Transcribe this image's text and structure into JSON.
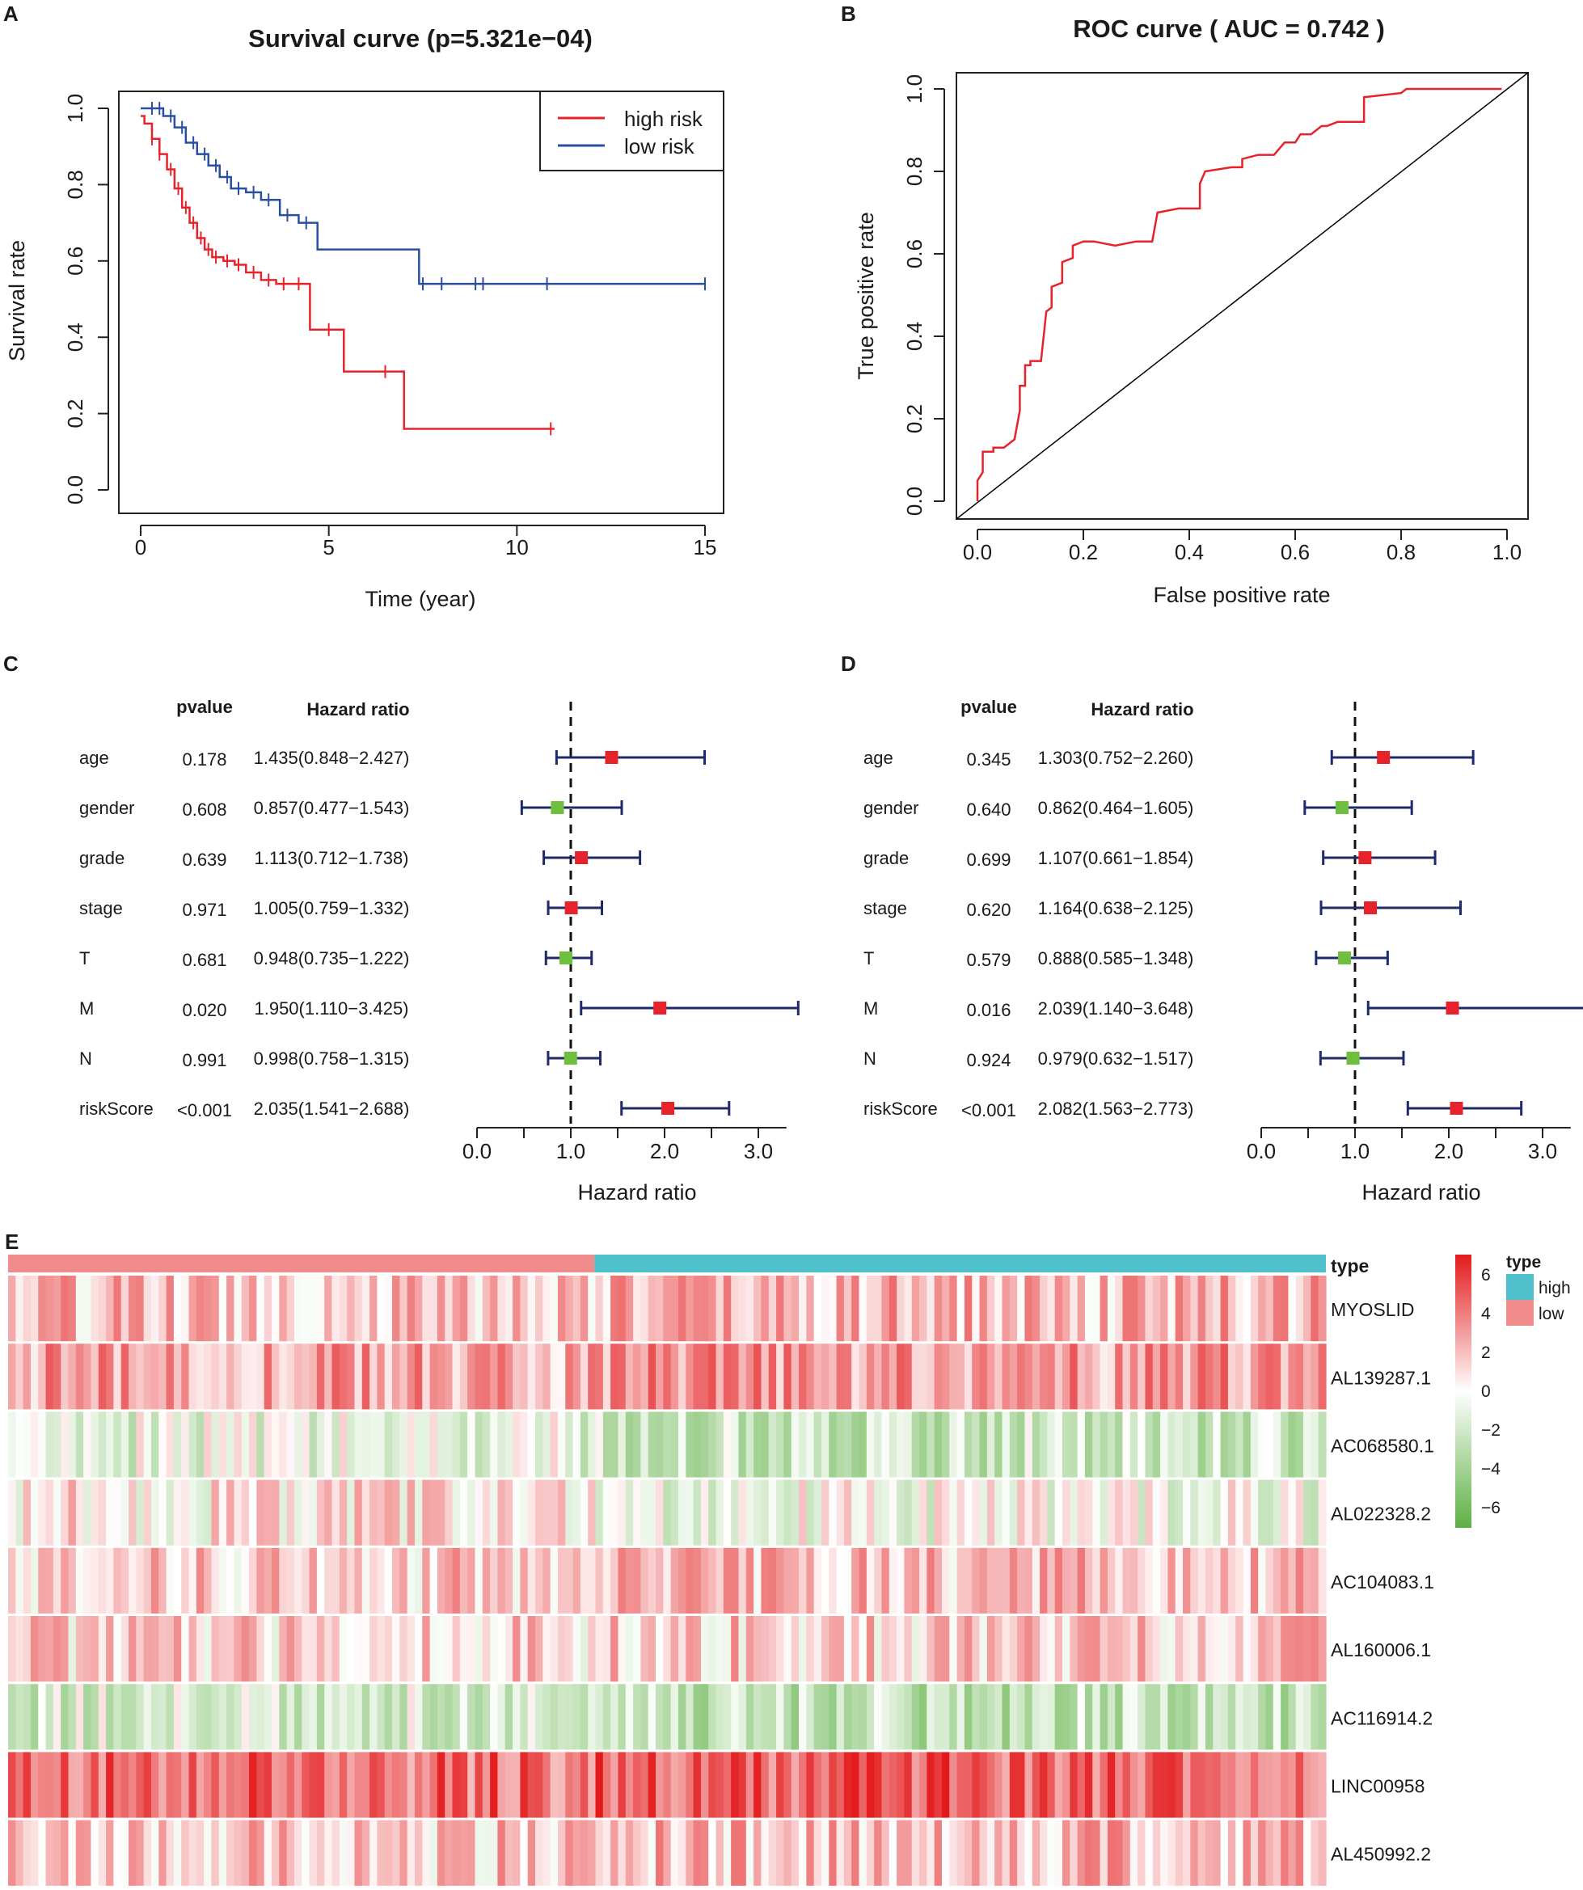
{
  "panels": {
    "A": "A",
    "B": "B",
    "C": "C",
    "D": "D",
    "E": "E"
  },
  "chart_data": [
    {
      "id": "A",
      "type": "line",
      "subtype": "kaplan-meier",
      "title": "Survival curve (p=5.321e−04)",
      "xlabel": "Time (year)",
      "ylabel": "Survival rate",
      "xlim": [
        0,
        15
      ],
      "ylim": [
        0,
        1
      ],
      "xticks": [
        "0",
        "5",
        "10",
        "15"
      ],
      "yticks": [
        "0.0",
        "0.2",
        "0.4",
        "0.6",
        "0.8",
        "1.0"
      ],
      "legend": {
        "position": "top-right",
        "entries": [
          "high risk",
          "low risk"
        ]
      },
      "series": [
        {
          "name": "high risk",
          "color": "#e8222a",
          "x": [
            0,
            0.1,
            0.3,
            0.5,
            0.7,
            0.9,
            1.1,
            1.3,
            1.5,
            1.7,
            1.9,
            2.2,
            2.5,
            2.8,
            3.2,
            3.6,
            4.0,
            4.5,
            4.7,
            5.4,
            7.0,
            11.0
          ],
          "y": [
            0.98,
            0.96,
            0.92,
            0.88,
            0.84,
            0.79,
            0.74,
            0.7,
            0.66,
            0.63,
            0.61,
            0.6,
            0.59,
            0.57,
            0.55,
            0.54,
            0.54,
            0.42,
            0.42,
            0.31,
            0.16,
            0.16
          ],
          "censor_x": [
            0.3,
            0.5,
            0.8,
            1.0,
            1.2,
            1.4,
            1.6,
            1.8,
            2.0,
            2.3,
            2.6,
            3.0,
            3.4,
            3.8,
            4.2,
            5.0,
            6.5,
            10.9
          ]
        },
        {
          "name": "low risk",
          "color": "#2a4fa0",
          "x": [
            0,
            0.6,
            0.9,
            1.2,
            1.5,
            1.8,
            2.1,
            2.4,
            2.8,
            3.2,
            3.7,
            4.2,
            4.7,
            7.4,
            15.0
          ],
          "y": [
            1.0,
            0.98,
            0.95,
            0.91,
            0.88,
            0.85,
            0.82,
            0.79,
            0.78,
            0.76,
            0.72,
            0.7,
            0.63,
            0.54,
            0.54
          ],
          "censor_x": [
            0.3,
            0.5,
            0.8,
            1.1,
            1.4,
            1.7,
            2.0,
            2.3,
            2.6,
            3.0,
            3.4,
            3.9,
            4.4,
            7.5,
            8.0,
            8.9,
            9.1,
            10.8,
            15.0
          ]
        }
      ]
    },
    {
      "id": "B",
      "type": "line",
      "subtype": "roc",
      "title": "ROC curve ( AUC =  0.742 )",
      "xlabel": "False positive rate",
      "ylabel": "True positive rate",
      "xlim": [
        0,
        1
      ],
      "ylim": [
        0,
        1
      ],
      "xticks": [
        "0.0",
        "0.2",
        "0.4",
        "0.6",
        "0.8",
        "1.0"
      ],
      "yticks": [
        "0.0",
        "0.2",
        "0.4",
        "0.6",
        "0.8",
        "1.0"
      ],
      "series": [
        {
          "name": "ROC",
          "color": "#e8222a",
          "x": [
            0,
            0,
            0.01,
            0.01,
            0.03,
            0.03,
            0.05,
            0.07,
            0.08,
            0.08,
            0.09,
            0.09,
            0.1,
            0.1,
            0.12,
            0.13,
            0.14,
            0.14,
            0.16,
            0.16,
            0.18,
            0.18,
            0.2,
            0.22,
            0.26,
            0.3,
            0.33,
            0.34,
            0.38,
            0.42,
            0.42,
            0.43,
            0.48,
            0.5,
            0.5,
            0.53,
            0.56,
            0.58,
            0.6,
            0.61,
            0.63,
            0.65,
            0.66,
            0.68,
            0.73,
            0.73,
            0.8,
            0.81,
            0.9,
            0.99
          ],
          "y": [
            0,
            0.05,
            0.07,
            0.12,
            0.12,
            0.13,
            0.13,
            0.15,
            0.22,
            0.28,
            0.28,
            0.33,
            0.33,
            0.34,
            0.34,
            0.46,
            0.47,
            0.52,
            0.53,
            0.58,
            0.59,
            0.62,
            0.63,
            0.63,
            0.62,
            0.63,
            0.63,
            0.7,
            0.71,
            0.71,
            0.77,
            0.8,
            0.81,
            0.81,
            0.83,
            0.84,
            0.84,
            0.87,
            0.87,
            0.89,
            0.89,
            0.91,
            0.91,
            0.92,
            0.92,
            0.98,
            0.99,
            1.0,
            1.0,
            1.0
          ]
        },
        {
          "name": "diagonal",
          "color": "#000000",
          "x": [
            0,
            1
          ],
          "y": [
            0,
            1
          ]
        }
      ]
    },
    {
      "id": "C",
      "type": "forest",
      "header_pvalue": "pvalue",
      "header_hr": "Hazard ratio",
      "xlabel": "Hazard ratio",
      "xlim": [
        0,
        3.0
      ],
      "xticks": [
        "0.0",
        "1.0",
        "2.0",
        "3.0"
      ],
      "reference": 1.0,
      "rows": [
        {
          "label": "age",
          "pvalue": "0.178",
          "hr_text": "1.435(0.848−2.427)",
          "hr": 1.435,
          "lo": 0.848,
          "hi": 2.427
        },
        {
          "label": "gender",
          "pvalue": "0.608",
          "hr_text": "0.857(0.477−1.543)",
          "hr": 0.857,
          "lo": 0.477,
          "hi": 1.543
        },
        {
          "label": "grade",
          "pvalue": "0.639",
          "hr_text": "1.113(0.712−1.738)",
          "hr": 1.113,
          "lo": 0.712,
          "hi": 1.738
        },
        {
          "label": "stage",
          "pvalue": "0.971",
          "hr_text": "1.005(0.759−1.332)",
          "hr": 1.005,
          "lo": 0.759,
          "hi": 1.332
        },
        {
          "label": "T",
          "pvalue": "0.681",
          "hr_text": "0.948(0.735−1.222)",
          "hr": 0.948,
          "lo": 0.735,
          "hi": 1.222
        },
        {
          "label": "M",
          "pvalue": "0.020",
          "hr_text": "1.950(1.110−3.425)",
          "hr": 1.95,
          "lo": 1.11,
          "hi": 3.425
        },
        {
          "label": "N",
          "pvalue": "0.991",
          "hr_text": "0.998(0.758−1.315)",
          "hr": 0.998,
          "lo": 0.758,
          "hi": 1.315
        },
        {
          "label": "riskScore",
          "pvalue": "<0.001",
          "hr_text": "2.035(1.541−2.688)",
          "hr": 2.035,
          "lo": 1.541,
          "hi": 2.688
        }
      ]
    },
    {
      "id": "D",
      "type": "forest",
      "header_pvalue": "pvalue",
      "header_hr": "Hazard ratio",
      "xlabel": "Hazard ratio",
      "xlim": [
        0,
        3.0
      ],
      "xticks": [
        "0.0",
        "1.0",
        "2.0",
        "3.0"
      ],
      "reference": 1.0,
      "rows": [
        {
          "label": "age",
          "pvalue": "0.345",
          "hr_text": "1.303(0.752−2.260)",
          "hr": 1.303,
          "lo": 0.752,
          "hi": 2.26
        },
        {
          "label": "gender",
          "pvalue": "0.640",
          "hr_text": "0.862(0.464−1.605)",
          "hr": 0.862,
          "lo": 0.464,
          "hi": 1.605
        },
        {
          "label": "grade",
          "pvalue": "0.699",
          "hr_text": "1.107(0.661−1.854)",
          "hr": 1.107,
          "lo": 0.661,
          "hi": 1.854
        },
        {
          "label": "stage",
          "pvalue": "0.620",
          "hr_text": "1.164(0.638−2.125)",
          "hr": 1.164,
          "lo": 0.638,
          "hi": 2.125
        },
        {
          "label": "T",
          "pvalue": "0.579",
          "hr_text": "0.888(0.585−1.348)",
          "hr": 0.888,
          "lo": 0.585,
          "hi": 1.348
        },
        {
          "label": "M",
          "pvalue": "0.016",
          "hr_text": "2.039(1.140−3.648)",
          "hr": 2.039,
          "lo": 1.14,
          "hi": 3.648
        },
        {
          "label": "N",
          "pvalue": "0.924",
          "hr_text": "0.979(0.632−1.517)",
          "hr": 0.979,
          "lo": 0.632,
          "hi": 1.517
        },
        {
          "label": "riskScore",
          "pvalue": "<0.001",
          "hr_text": "2.082(1.563−2.773)",
          "hr": 2.082,
          "lo": 1.563,
          "hi": 2.773
        }
      ]
    },
    {
      "id": "E",
      "type": "heatmap",
      "annotation_label": "type",
      "groups": [
        {
          "name": "low",
          "color": "#f08c8c",
          "fraction": 0.445
        },
        {
          "name": "high",
          "color": "#4fc1cc",
          "fraction": 0.555
        }
      ],
      "genes": [
        "MYOSLID",
        "AL139287.1",
        "AC068580.1",
        "AL022328.2",
        "AC104083.1",
        "AL160006.1",
        "AC116914.2",
        "LINC00958",
        "AL450992.2"
      ],
      "gene_mean_expression": [
        1.6,
        2.3,
        -0.8,
        0.6,
        1.3,
        1.0,
        -1.2,
        3.8,
        1.4
      ],
      "color_scale": {
        "min": -6,
        "max": 6,
        "low_color": "#5db043",
        "mid_color": "#ffffff",
        "high_color": "#e31a1c"
      },
      "colorbar_ticks": [
        "6",
        "4",
        "2",
        "0",
        "−2",
        "−4",
        "−6"
      ],
      "legend": {
        "title": "type",
        "entries": [
          "high",
          "low"
        ]
      }
    }
  ]
}
